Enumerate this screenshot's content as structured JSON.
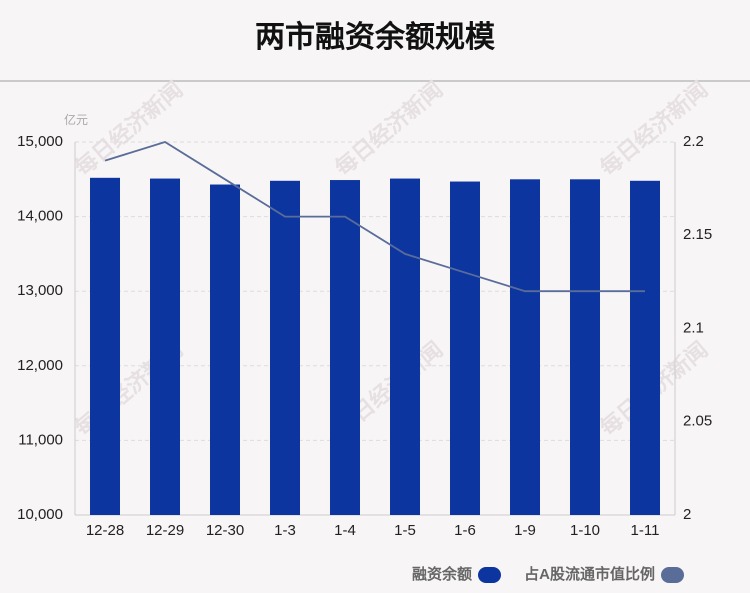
{
  "chart_data": {
    "type": "bar",
    "title": "两市融资余额规模",
    "unit_label": "亿元",
    "watermark": "每日经济新闻",
    "categories": [
      "12-28",
      "12-29",
      "12-30",
      "1-3",
      "1-4",
      "1-5",
      "1-6",
      "1-9",
      "1-10",
      "1-11"
    ],
    "series": [
      {
        "name": "融资余额",
        "color": "#0d35a0",
        "type": "bar",
        "values": [
          14520,
          14510,
          14430,
          14480,
          14490,
          14510,
          14470,
          14500,
          14500,
          14480
        ]
      },
      {
        "name": "占A股流通市值比例",
        "color": "#5a6d99",
        "type": "line",
        "axis": "y2",
        "values": [
          2.19,
          2.2,
          2.18,
          2.16,
          2.16,
          2.14,
          2.13,
          2.12,
          2.12,
          2.12
        ]
      }
    ],
    "ylim": [
      10000,
      15000
    ],
    "yticks": [
      {
        "value": 10000,
        "label": "10,000"
      },
      {
        "value": 11000,
        "label": "11,000"
      },
      {
        "value": 12000,
        "label": "12,000"
      },
      {
        "value": 13000,
        "label": "13,000"
      },
      {
        "value": 14000,
        "label": "14,000"
      },
      {
        "value": 15000,
        "label": "15,000"
      }
    ],
    "y2lim": [
      2,
      2.2
    ],
    "y2ticks": [
      2,
      2.05,
      2.1,
      2.15,
      2.2
    ],
    "grid": true
  }
}
